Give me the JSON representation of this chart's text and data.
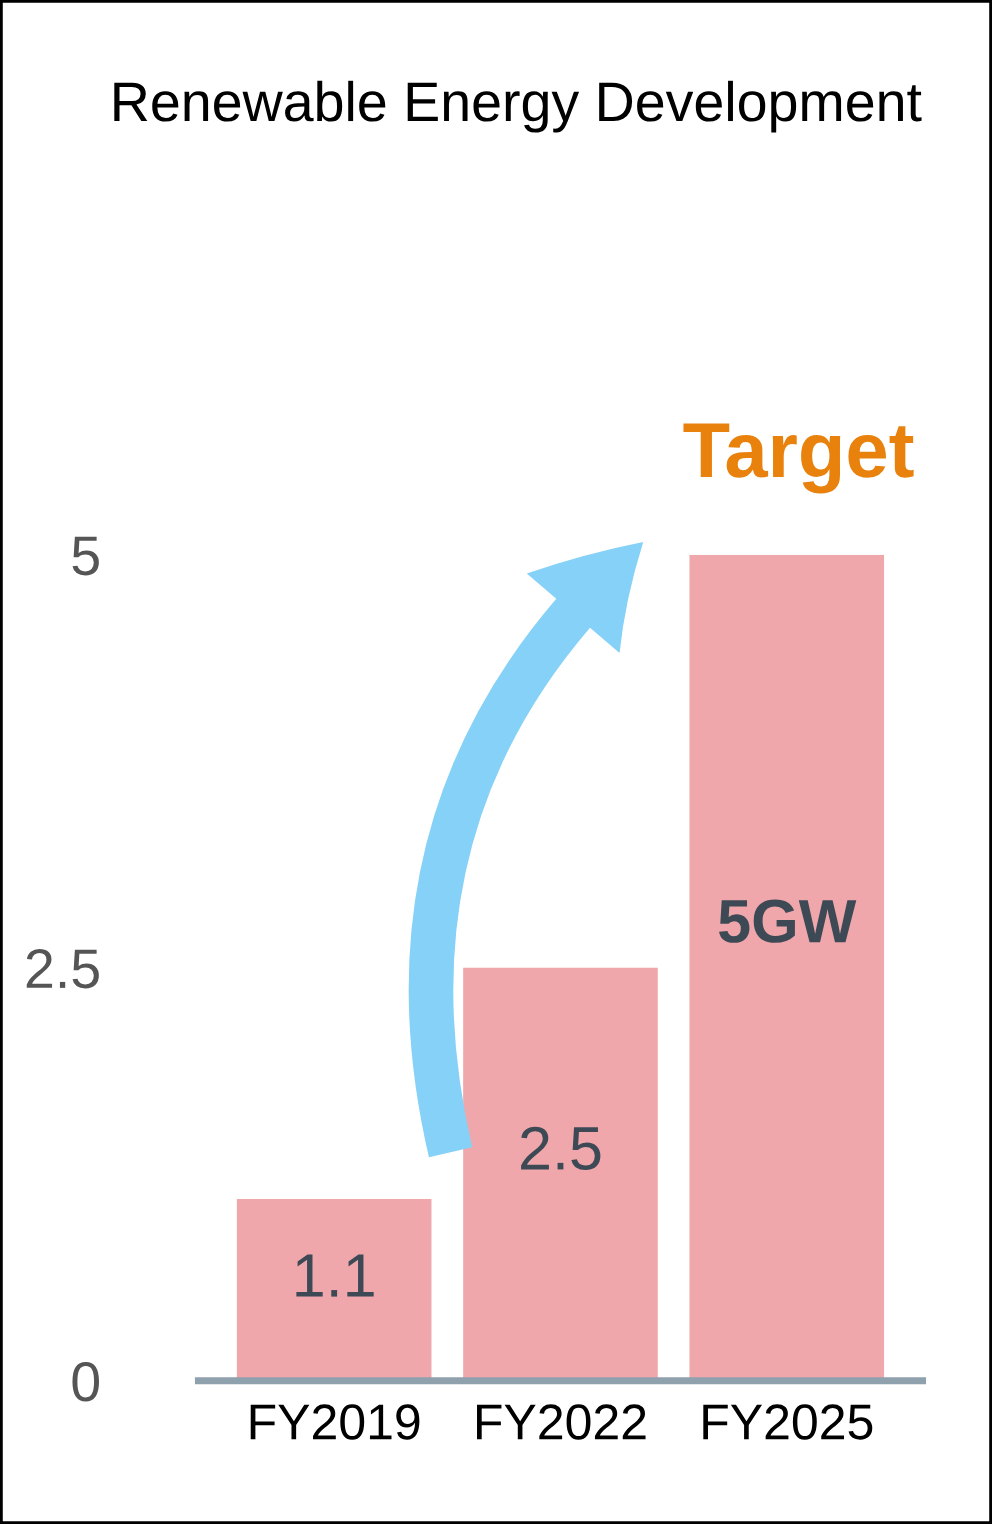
{
  "chart_data": {
    "type": "bar",
    "title": "Renewable Energy Development",
    "categories": [
      "FY2019",
      "FY2022",
      "FY2025"
    ],
    "values": [
      1.1,
      2.5,
      5
    ],
    "color": "#efa7ab",
    "value_labels": [
      "1.1",
      "2.5",
      "5GW"
    ],
    "ylim": [
      0,
      5
    ],
    "yticks": [
      0,
      2.5,
      5
    ],
    "grid": false,
    "legend": false,
    "annotations": [
      "Target"
    ]
  }
}
